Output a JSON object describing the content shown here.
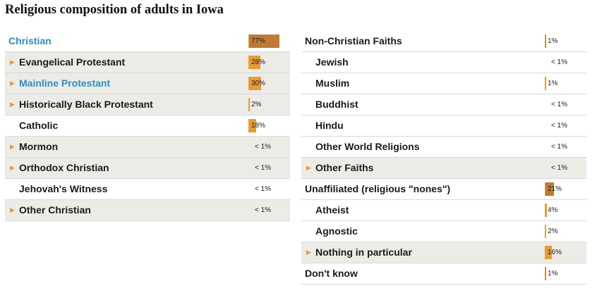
{
  "title": "Religious composition of adults in Iowa",
  "colors": {
    "bar_dark": "#c07a35",
    "bar_light": "#e89a33",
    "highlight_text": "#2a8fc2",
    "row_shade": "#ecebe6"
  },
  "chart_data": {
    "type": "bar",
    "title": "Religious composition of adults in Iowa",
    "xlim": [
      0,
      100
    ],
    "columns": [
      {
        "rows": [
          {
            "label": "Christian",
            "value_label": "77%",
            "value": 77,
            "level": 0,
            "expandable": false,
            "highlight": true,
            "shaded": false,
            "bar_style": "dark"
          },
          {
            "label": "Evangelical Protestant",
            "value_label": "28%",
            "value": 28,
            "level": 1,
            "expandable": true,
            "highlight": false,
            "shaded": true,
            "bar_style": "light"
          },
          {
            "label": "Mainline Protestant",
            "value_label": "30%",
            "value": 30,
            "level": 1,
            "expandable": true,
            "highlight": true,
            "shaded": true,
            "bar_style": "light"
          },
          {
            "label": "Historically Black Protestant",
            "value_label": "2%",
            "value": 2,
            "level": 1,
            "expandable": true,
            "highlight": false,
            "shaded": true,
            "bar_style": "light"
          },
          {
            "label": "Catholic",
            "value_label": "18%",
            "value": 18,
            "level": 1,
            "expandable": false,
            "highlight": false,
            "shaded": false,
            "bar_style": "light"
          },
          {
            "label": "Mormon",
            "value_label": "< 1%",
            "value": 0.5,
            "level": 1,
            "expandable": true,
            "highlight": false,
            "shaded": true,
            "bar_style": "light"
          },
          {
            "label": "Orthodox Christian",
            "value_label": "< 1%",
            "value": 0.5,
            "level": 1,
            "expandable": true,
            "highlight": false,
            "shaded": true,
            "bar_style": "light"
          },
          {
            "label": "Jehovah's Witness",
            "value_label": "< 1%",
            "value": 0.5,
            "level": 1,
            "expandable": false,
            "highlight": false,
            "shaded": false,
            "bar_style": "light"
          },
          {
            "label": "Other Christian",
            "value_label": "< 1%",
            "value": 0.5,
            "level": 1,
            "expandable": true,
            "highlight": false,
            "shaded": true,
            "bar_style": "light"
          }
        ]
      },
      {
        "rows": [
          {
            "label": "Non-Christian Faiths",
            "value_label": "1%",
            "value": 1,
            "level": 0,
            "expandable": false,
            "highlight": false,
            "shaded": false,
            "bar_style": "dark"
          },
          {
            "label": "Jewish",
            "value_label": "< 1%",
            "value": 0.5,
            "level": 1,
            "expandable": false,
            "highlight": false,
            "shaded": false,
            "bar_style": "light"
          },
          {
            "label": "Muslim",
            "value_label": "1%",
            "value": 1,
            "level": 1,
            "expandable": false,
            "highlight": false,
            "shaded": false,
            "bar_style": "light"
          },
          {
            "label": "Buddhist",
            "value_label": "< 1%",
            "value": 0.5,
            "level": 1,
            "expandable": false,
            "highlight": false,
            "shaded": false,
            "bar_style": "light"
          },
          {
            "label": "Hindu",
            "value_label": "< 1%",
            "value": 0.5,
            "level": 1,
            "expandable": false,
            "highlight": false,
            "shaded": false,
            "bar_style": "light"
          },
          {
            "label": "Other World Religions",
            "value_label": "< 1%",
            "value": 0.5,
            "level": 1,
            "expandable": false,
            "highlight": false,
            "shaded": false,
            "bar_style": "light"
          },
          {
            "label": "Other Faiths",
            "value_label": "< 1%",
            "value": 0.5,
            "level": 1,
            "expandable": true,
            "highlight": false,
            "shaded": true,
            "bar_style": "light"
          },
          {
            "label": "Unaffiliated (religious \"nones\")",
            "value_label": "21%",
            "value": 21,
            "level": 0,
            "expandable": false,
            "highlight": false,
            "shaded": false,
            "bar_style": "dark"
          },
          {
            "label": "Atheist",
            "value_label": "4%",
            "value": 4,
            "level": 1,
            "expandable": false,
            "highlight": false,
            "shaded": false,
            "bar_style": "light"
          },
          {
            "label": "Agnostic",
            "value_label": "2%",
            "value": 2,
            "level": 1,
            "expandable": false,
            "highlight": false,
            "shaded": false,
            "bar_style": "light"
          },
          {
            "label": "Nothing in particular",
            "value_label": "16%",
            "value": 16,
            "level": 1,
            "expandable": true,
            "highlight": false,
            "shaded": true,
            "bar_style": "light"
          },
          {
            "label": "Don't know",
            "value_label": "1%",
            "value": 1,
            "level": 0,
            "expandable": false,
            "highlight": false,
            "shaded": false,
            "bar_style": "dark"
          }
        ]
      }
    ]
  }
}
